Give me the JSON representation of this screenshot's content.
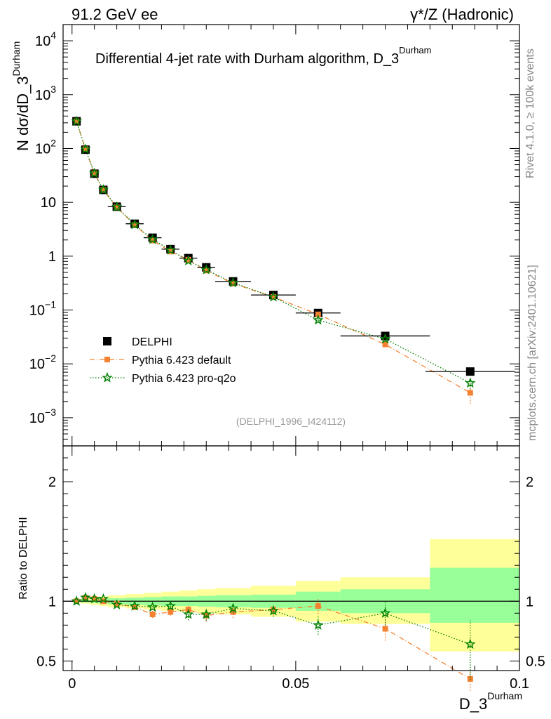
{
  "header": {
    "left_label": "91.2 GeV ee",
    "right_label": "γ*/Z (Hadronic)"
  },
  "side_labels": {
    "rivet": "Rivet 4.1.0, ≥ 100k events",
    "mcplots": "mcplots.cern.ch [arXiv:2401.10621]"
  },
  "chart_data": [
    {
      "type": "scatter",
      "panel": "main",
      "title": "Differential 4-jet rate with Durham algorithm, D_3",
      "title_sup": "Durham",
      "ylabel": "N  dσ/dD_3",
      "ylabel_sup": "Durham",
      "yscale": "log",
      "ylim": [
        0.0003,
        20000
      ],
      "xlim": [
        -0.002,
        0.1
      ],
      "ytick_labels": [
        {
          "value": 0.001,
          "base": "10",
          "exp": "−3"
        },
        {
          "value": 0.01,
          "base": "10",
          "exp": "−2"
        },
        {
          "value": 0.1,
          "base": "10",
          "exp": "−1"
        },
        {
          "value": 1,
          "base": "1",
          "exp": ""
        },
        {
          "value": 10,
          "base": "10",
          "exp": ""
        },
        {
          "value": 100,
          "base": "10",
          "exp": "2"
        },
        {
          "value": 1000,
          "base": "10",
          "exp": "3"
        },
        {
          "value": 10000,
          "base": "10",
          "exp": "4"
        }
      ],
      "annotation": "(DELPHI_1996_I424112)",
      "legend": [
        {
          "name": "DELPHI",
          "marker": "square",
          "color": "#000000"
        },
        {
          "name": "Pythia 6.423 default",
          "marker": "square-small",
          "color": "#f58231"
        },
        {
          "name": "Pythia 6.423 pro-q2o",
          "marker": "star",
          "color": "#008000"
        }
      ],
      "series": [
        {
          "name": "DELPHI",
          "x": [
            0.001,
            0.003,
            0.005,
            0.007,
            0.01,
            0.014,
            0.018,
            0.022,
            0.026,
            0.03,
            0.036,
            0.045,
            0.055,
            0.07,
            0.089
          ],
          "values": [
            320,
            95,
            34,
            17,
            8.3,
            4.0,
            2.2,
            1.35,
            0.92,
            0.62,
            0.34,
            0.19,
            0.088,
            0.033,
            0.0072
          ],
          "xerr": [
            0.001,
            0.001,
            0.001,
            0.001,
            0.002,
            0.002,
            0.002,
            0.002,
            0.002,
            0.002,
            0.004,
            0.005,
            0.005,
            0.01,
            0.01
          ]
        },
        {
          "name": "Pythia 6.423 default",
          "x": [
            0.001,
            0.003,
            0.005,
            0.007,
            0.01,
            0.014,
            0.018,
            0.022,
            0.026,
            0.03,
            0.036,
            0.045,
            0.055,
            0.07,
            0.089
          ],
          "values": [
            320,
            97,
            34.5,
            17,
            8.1,
            3.8,
            1.95,
            1.22,
            0.86,
            0.54,
            0.31,
            0.175,
            0.083,
            0.023,
            0.0029
          ],
          "yerr_low": [
            0,
            0,
            0,
            0,
            0,
            0,
            0,
            0,
            0,
            0,
            0,
            0,
            0,
            0.002,
            0.0011
          ],
          "yerr_high": [
            0,
            0,
            0,
            0,
            0,
            0,
            0,
            0,
            0,
            0,
            0,
            0,
            0,
            0.002,
            0.001
          ]
        },
        {
          "name": "Pythia 6.423 pro-q2o",
          "x": [
            0.001,
            0.003,
            0.005,
            0.007,
            0.01,
            0.014,
            0.018,
            0.022,
            0.026,
            0.03,
            0.036,
            0.045,
            0.055,
            0.07,
            0.089
          ],
          "values": [
            320,
            97,
            34.5,
            17.2,
            8.2,
            3.85,
            2.05,
            1.3,
            0.82,
            0.56,
            0.32,
            0.175,
            0.065,
            0.029,
            0.0044
          ],
          "yerr_low": [
            0,
            0,
            0,
            0,
            0,
            0,
            0,
            0,
            0,
            0,
            0,
            0,
            0.004,
            0.003,
            0.001
          ],
          "yerr_high": [
            0,
            0,
            0,
            0,
            0,
            0,
            0,
            0,
            0,
            0,
            0,
            0,
            0.004,
            0.003,
            0.001
          ]
        }
      ]
    },
    {
      "type": "scatter",
      "panel": "ratio",
      "ylabel": "Ratio to DELPHI",
      "xlabel": "D_3",
      "xlabel_sup": "Durham",
      "ylim": [
        0.42,
        2.3
      ],
      "xlim": [
        -0.002,
        0.1
      ],
      "xticks": [
        0,
        0.05,
        0.1
      ],
      "xtick_labels": [
        "0",
        "0.05",
        "0.1"
      ],
      "yticks": [
        0.5,
        1,
        2
      ],
      "ytick_labels": [
        "0.5",
        "1",
        "2"
      ],
      "bins": {
        "xlow": [
          0,
          0.002,
          0.004,
          0.006,
          0.008,
          0.012,
          0.016,
          0.02,
          0.024,
          0.028,
          0.032,
          0.04,
          0.05,
          0.06,
          0.08
        ],
        "xhigh": [
          0.002,
          0.004,
          0.006,
          0.008,
          0.012,
          0.016,
          0.02,
          0.024,
          0.028,
          0.032,
          0.04,
          0.05,
          0.06,
          0.08,
          0.1
        ],
        "stat_low": [
          0.995,
          0.99,
          0.985,
          0.98,
          0.975,
          0.97,
          0.965,
          0.96,
          0.96,
          0.955,
          0.95,
          0.945,
          0.92,
          0.9,
          0.82
        ],
        "stat_high": [
          1.005,
          1.01,
          1.015,
          1.02,
          1.025,
          1.03,
          1.035,
          1.04,
          1.04,
          1.045,
          1.05,
          1.055,
          1.08,
          1.1,
          1.28
        ],
        "total_low": [
          0.99,
          0.98,
          0.97,
          0.96,
          0.95,
          0.94,
          0.93,
          0.92,
          0.91,
          0.9,
          0.89,
          0.87,
          0.83,
          0.81,
          0.58
        ],
        "total_high": [
          1.01,
          1.02,
          1.03,
          1.04,
          1.05,
          1.06,
          1.07,
          1.08,
          1.09,
          1.1,
          1.11,
          1.13,
          1.17,
          1.2,
          1.52
        ]
      },
      "series": [
        {
          "name": "Pythia 6.423 default",
          "x": [
            0.001,
            0.003,
            0.005,
            0.007,
            0.01,
            0.014,
            0.018,
            0.022,
            0.026,
            0.03,
            0.036,
            0.045,
            0.055,
            0.07,
            0.089
          ],
          "values": [
            1.0,
            1.03,
            1.02,
            1.0,
            0.98,
            0.95,
            0.89,
            0.91,
            0.93,
            0.88,
            0.91,
            0.93,
            0.96,
            0.77,
            0.35
          ],
          "yerr_low": [
            0,
            0,
            0,
            0,
            0,
            0.01,
            0.03,
            0.03,
            0.05,
            0.05,
            0.05,
            0.05,
            0.07,
            0.1,
            0.1
          ],
          "yerr_high": [
            0,
            0,
            0,
            0,
            0,
            0.01,
            0.03,
            0.03,
            0.04,
            0.04,
            0.04,
            0.04,
            0.07,
            0.1,
            0.1
          ]
        },
        {
          "name": "Pythia 6.423 pro-q2o",
          "x": [
            0.001,
            0.003,
            0.005,
            0.007,
            0.01,
            0.014,
            0.018,
            0.022,
            0.026,
            0.03,
            0.036,
            0.045,
            0.055,
            0.07,
            0.089
          ],
          "values": [
            1.0,
            1.03,
            1.02,
            1.02,
            0.97,
            0.96,
            0.95,
            0.96,
            0.89,
            0.89,
            0.94,
            0.92,
            0.8,
            0.9,
            0.64
          ],
          "yerr_low": [
            0,
            0,
            0,
            0,
            0,
            0.01,
            0.02,
            0.03,
            0.05,
            0.05,
            0.04,
            0.05,
            0.08,
            0.1,
            0.3
          ],
          "yerr_high": [
            0,
            0,
            0,
            0,
            0,
            0.01,
            0.02,
            0.03,
            0.05,
            0.05,
            0.04,
            0.05,
            0.08,
            0.1,
            0.2
          ]
        }
      ]
    }
  ]
}
